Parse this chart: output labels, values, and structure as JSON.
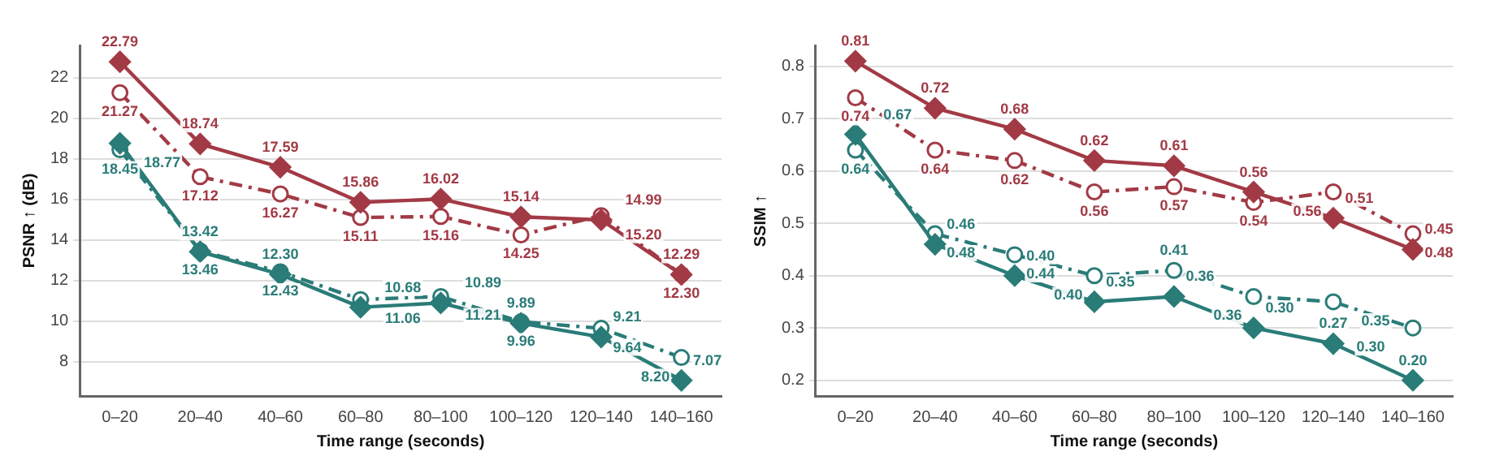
{
  "chart_data": [
    {
      "type": "line",
      "xlabel": "Time range (seconds)",
      "ylabel": "PSNR ↑ (dB)",
      "categories": [
        "0–20",
        "20–40",
        "40–60",
        "60–80",
        "80–100",
        "100–120",
        "120–140",
        "140–160"
      ],
      "ylim": [
        6.3,
        23.6
      ],
      "yticks": [
        8,
        10,
        12,
        14,
        16,
        18,
        20,
        22
      ],
      "grid": "y",
      "series": [
        {
          "color": "#a23a45",
          "marker": "diamond",
          "line_style": "solid",
          "values": [
            22.79,
            18.74,
            17.59,
            15.86,
            16.02,
            15.14,
            14.99,
            12.29
          ],
          "value_labels": [
            "22.79",
            "18.74",
            "17.59",
            "15.86",
            "16.02",
            "15.14",
            "14.99",
            "12.29"
          ]
        },
        {
          "color": "#a23a45",
          "marker": "circle",
          "line_style": "dashdot",
          "values": [
            21.27,
            17.12,
            16.27,
            15.11,
            15.16,
            14.25,
            15.2,
            12.3
          ],
          "value_labels": [
            "21.27",
            "17.12",
            "16.27",
            "15.11",
            "15.16",
            "14.25",
            "15.20",
            "12.30"
          ]
        },
        {
          "color": "#2a7c78",
          "marker": "diamond",
          "line_style": "solid",
          "values": [
            18.77,
            13.42,
            12.3,
            10.68,
            10.89,
            9.89,
            9.21,
            7.07
          ],
          "value_labels": [
            "18.77",
            "13.42",
            "12.30",
            "10.68",
            "10.89",
            "9.89",
            "9.21",
            "7.07"
          ]
        },
        {
          "color": "#2a7c78",
          "marker": "circle",
          "line_style": "dashdot",
          "values": [
            18.45,
            13.46,
            12.43,
            11.06,
            11.21,
            9.96,
            9.64,
            8.2
          ],
          "value_labels": [
            "18.45",
            "13.46",
            "12.43",
            "11.06",
            "11.21",
            "9.96",
            "9.64",
            "8.20"
          ]
        }
      ]
    },
    {
      "type": "line",
      "xlabel": "Time range (seconds)",
      "ylabel": "SSIM ↑",
      "categories": [
        "0–20",
        "20–40",
        "40–60",
        "60–80",
        "80–100",
        "100–120",
        "120–140",
        "140–160"
      ],
      "ylim": [
        0.17,
        0.84
      ],
      "yticks": [
        0.2,
        0.3,
        0.4,
        0.5,
        0.6,
        0.7,
        0.8
      ],
      "grid": "y",
      "series": [
        {
          "color": "#a23a45",
          "marker": "diamond",
          "line_style": "solid",
          "values": [
            0.81,
            0.72,
            0.68,
            0.62,
            0.61,
            0.56,
            0.51,
            0.45
          ],
          "value_labels": [
            "0.81",
            "0.72",
            "0.68",
            "0.62",
            "0.61",
            "0.56",
            "0.51",
            "0.45"
          ]
        },
        {
          "color": "#a23a45",
          "marker": "circle",
          "line_style": "dashdot",
          "values": [
            0.74,
            0.64,
            0.62,
            0.56,
            0.57,
            0.54,
            0.56,
            0.48
          ],
          "value_labels": [
            "0.74",
            "0.64",
            "0.62",
            "0.56",
            "0.57",
            "0.54",
            "0.56",
            "0.48"
          ]
        },
        {
          "color": "#2a7c78",
          "marker": "diamond",
          "line_style": "solid",
          "values": [
            0.67,
            0.46,
            0.4,
            0.35,
            0.36,
            0.3,
            0.27,
            0.2
          ],
          "value_labels": [
            "0.67",
            "0.46",
            "0.40",
            "0.35",
            "0.36",
            "0.30",
            "0.27",
            "0.20"
          ]
        },
        {
          "color": "#2a7c78",
          "marker": "circle",
          "line_style": "dashdot",
          "values": [
            0.64,
            0.48,
            0.44,
            0.4,
            0.41,
            0.36,
            0.35,
            0.3
          ],
          "value_labels": [
            "0.64",
            "0.48",
            "0.44",
            "0.40",
            "0.41",
            "0.36",
            "0.35",
            "0.30"
          ]
        }
      ]
    }
  ]
}
